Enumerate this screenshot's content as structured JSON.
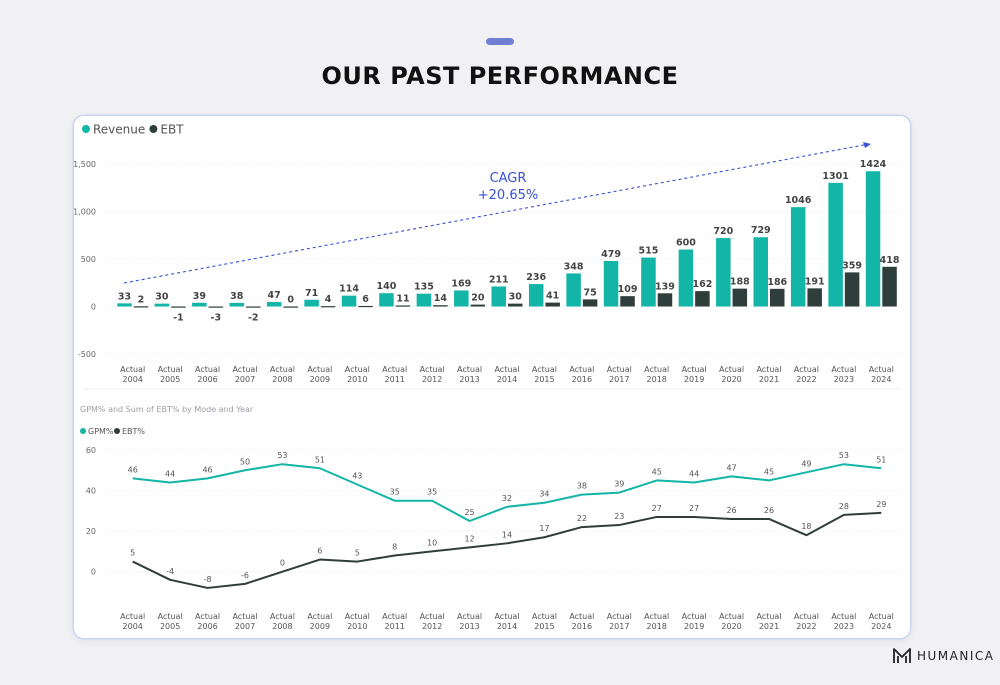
{
  "page": {
    "title": "OUR PAST PERFORMANCE"
  },
  "brand": {
    "name": "HUMANICA"
  },
  "colors": {
    "teal": "#12b5a6",
    "dark": "#2f3d3b",
    "cagr": "#3651d4"
  },
  "chart_data": [
    {
      "type": "bar",
      "categories": [
        "Actual 2004",
        "Actual 2005",
        "Actual 2006",
        "Actual 2007",
        "Actual 2008",
        "Actual 2009",
        "Actual 2010",
        "Actual 2011",
        "Actual 2012",
        "Actual 2013",
        "Actual 2014",
        "Actual 2015",
        "Actual 2016",
        "Actual 2017",
        "Actual 2018",
        "Actual 2019",
        "Actual 2020",
        "Actual 2021",
        "Actual 2022",
        "Actual 2023",
        "Actual 2024"
      ],
      "series": [
        {
          "name": "Revenue",
          "color": "#12b5a6",
          "values": [
            33,
            30,
            39,
            38,
            47,
            71,
            114,
            140,
            135,
            169,
            211,
            236,
            348,
            479,
            515,
            600,
            720,
            729,
            1046,
            1301,
            1424
          ]
        },
        {
          "name": "EBT",
          "color": "#2f3d3b",
          "values": [
            2,
            -1,
            -3,
            -2,
            0,
            4,
            6,
            11,
            14,
            20,
            30,
            41,
            75,
            109,
            139,
            162,
            188,
            186,
            191,
            359,
            418
          ]
        }
      ],
      "yticks": [
        "1,500",
        "1,000",
        "500",
        "0",
        "-500"
      ],
      "ylim": [
        -500,
        1500
      ],
      "legend": "top-left",
      "annotation": {
        "title": "CAGR",
        "value": "+20.65%"
      }
    },
    {
      "type": "line",
      "title": "GPM% and Sum of EBT% by Mode and Year",
      "categories": [
        "Actual 2004",
        "Actual 2005",
        "Actual 2006",
        "Actual 2007",
        "Actual 2008",
        "Actual 2009",
        "Actual 2010",
        "Actual 2011",
        "Actual 2012",
        "Actual 2013",
        "Actual 2014",
        "Actual 2015",
        "Actual 2016",
        "Actual 2017",
        "Actual 2018",
        "Actual 2019",
        "Actual 2020",
        "Actual 2021",
        "Actual 2022",
        "Actual 2023",
        "Actual 2024"
      ],
      "series": [
        {
          "name": "GPM%",
          "color": "#12b5a6",
          "values": [
            46,
            44,
            46,
            50,
            53,
            51,
            43,
            35,
            35,
            25,
            32,
            34,
            38,
            39,
            45,
            44,
            47,
            45,
            49,
            53,
            51
          ]
        },
        {
          "name": "EBT%",
          "color": "#2f3d3b",
          "values": [
            5,
            -4,
            -8,
            -6,
            0,
            6,
            5,
            8,
            10,
            12,
            14,
            17,
            22,
            23,
            27,
            27,
            26,
            26,
            18,
            28,
            29
          ]
        }
      ],
      "yticks": [
        "60",
        "40",
        "20",
        "0"
      ],
      "ylim": [
        -10,
        60
      ],
      "legend": "top-left"
    }
  ]
}
